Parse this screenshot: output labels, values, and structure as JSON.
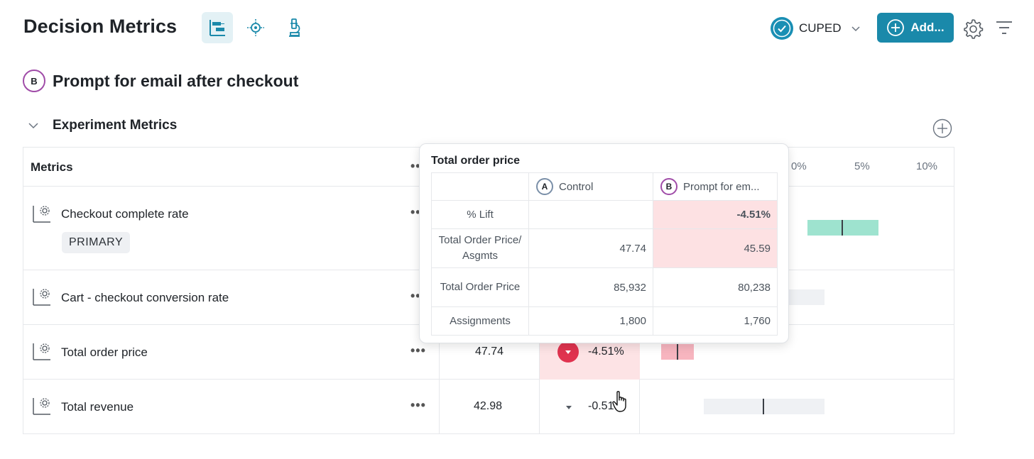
{
  "header": {
    "title": "Decision Metrics",
    "cuped_label": "CUPED",
    "add_label": "Add..."
  },
  "variant": {
    "badge": "B",
    "name": "Prompt for email after checkout"
  },
  "section": {
    "title": "Experiment Metrics"
  },
  "table": {
    "metrics_header": "Metrics",
    "more_menu": "•••",
    "axis_ticks": [
      "0%",
      "5%",
      "10%"
    ],
    "rows": [
      {
        "name": "Checkout complete rate",
        "tag": "PRIMARY"
      },
      {
        "name": "Cart - checkout conversion rate"
      },
      {
        "name": "Total order price",
        "value": "47.74",
        "lift": "-4.51%"
      },
      {
        "name": "Total revenue",
        "value": "42.98",
        "lift": "-0.51"
      }
    ]
  },
  "tooltip": {
    "title": "Total order price",
    "columns": [
      {
        "badge": "A",
        "label": "Control"
      },
      {
        "badge": "B",
        "label": "Prompt for em..."
      }
    ],
    "rows": [
      {
        "label": "% Lift",
        "a": "",
        "b": "-4.51%"
      },
      {
        "label": "Total Order Price/ Asgmts",
        "a": "47.74",
        "b": "45.59"
      },
      {
        "label": "Total Order Price",
        "a": "85,932",
        "b": "80,238"
      },
      {
        "label": "Assignments",
        "a": "1,800",
        "b": "1,760"
      }
    ]
  },
  "colors": {
    "accent": "#1a89aa",
    "variant_b": "#a04ca8",
    "negative": "#e0334f",
    "positive_bar": "#9ee3cf",
    "negative_fill": "#fde3e5"
  }
}
